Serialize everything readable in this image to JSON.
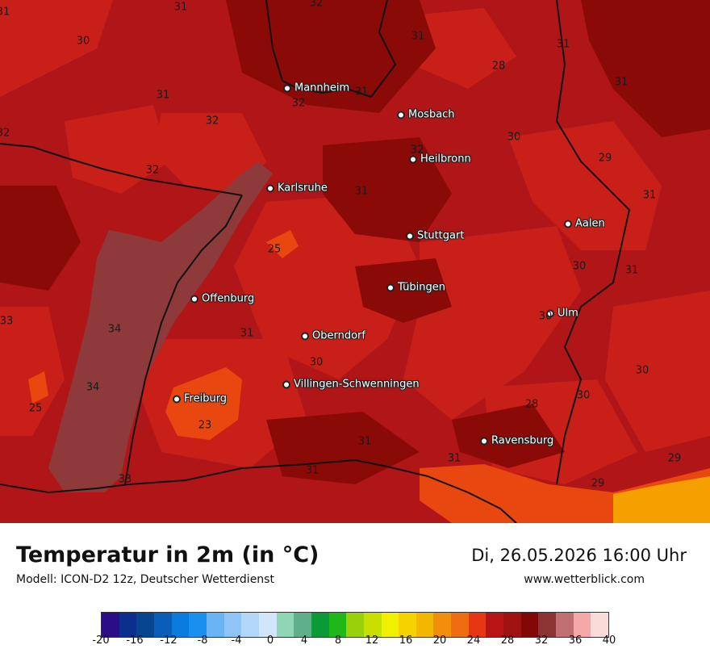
{
  "map": {
    "colors": {
      "t23": "#e8470f",
      "t25": "#c82018",
      "t28": "#b01618",
      "t31": "#8a0a08",
      "t34": "#8e3a3a",
      "t22": "#f5a000",
      "border": "#111111"
    },
    "cities": [
      {
        "name": "Mannheim",
        "id": "mannheim"
      },
      {
        "name": "Mosbach",
        "id": "mosbach"
      },
      {
        "name": "Heilbronn",
        "id": "heilbronn"
      },
      {
        "name": "Karlsruhe",
        "id": "karlsruhe"
      },
      {
        "name": "Aalen",
        "id": "aalen"
      },
      {
        "name": "Stuttgart",
        "id": "stuttgart"
      },
      {
        "name": "Tübingen",
        "id": "tuebingen"
      },
      {
        "name": "Offenburg",
        "id": "offenburg"
      },
      {
        "name": "Ulm",
        "id": "ulm"
      },
      {
        "name": "Oberndorf",
        "id": "oberndorf"
      },
      {
        "name": "Villingen-Schwenningen",
        "id": "villingen"
      },
      {
        "name": "Freiburg",
        "id": "freiburg"
      },
      {
        "name": "Ravensburg",
        "id": "ravensburg"
      }
    ],
    "isolines": [
      "31",
      "32",
      "30",
      "31",
      "28",
      "31",
      "32",
      "32",
      "32",
      "31",
      "31",
      "30",
      "29",
      "31",
      "32",
      "31",
      "25",
      "31",
      "30",
      "32",
      "31",
      "31",
      "34",
      "30",
      "33",
      "34",
      "25",
      "23",
      "30",
      "28",
      "30",
      "31",
      "31",
      "31",
      "29",
      "33",
      "29",
      "30",
      "31"
    ]
  },
  "footer": {
    "title": "Temperatur in 2m (in °C)",
    "subtitle": "Modell: ICON-D2 12z, Deutscher Wetterdienst",
    "datetime": "Di, 26.05.2026 16:00 Uhr",
    "website": "www.wetterblick.com"
  },
  "legend": {
    "colors": [
      "#2b0e87",
      "#0a2f8c",
      "#08458f",
      "#0a5db8",
      "#0a7ce0",
      "#1890f0",
      "#6ab4f5",
      "#8ec4f7",
      "#b3d7f9",
      "#d2e6fb",
      "#8fd6b4",
      "#5fb08a",
      "#0b9a38",
      "#20b818",
      "#9ad00a",
      "#c8e000",
      "#f0f000",
      "#f5d200",
      "#f2b800",
      "#f28e0a",
      "#ef6c12",
      "#e63712",
      "#b81414",
      "#a01212",
      "#820808",
      "#8c3434",
      "#c07070",
      "#f4a8a8",
      "#fbdada"
    ],
    "ticks": [
      "-20",
      "-16",
      "-12",
      "-8",
      "-4",
      "0",
      "4",
      "8",
      "12",
      "16",
      "20",
      "24",
      "28",
      "32",
      "36",
      "40"
    ]
  }
}
